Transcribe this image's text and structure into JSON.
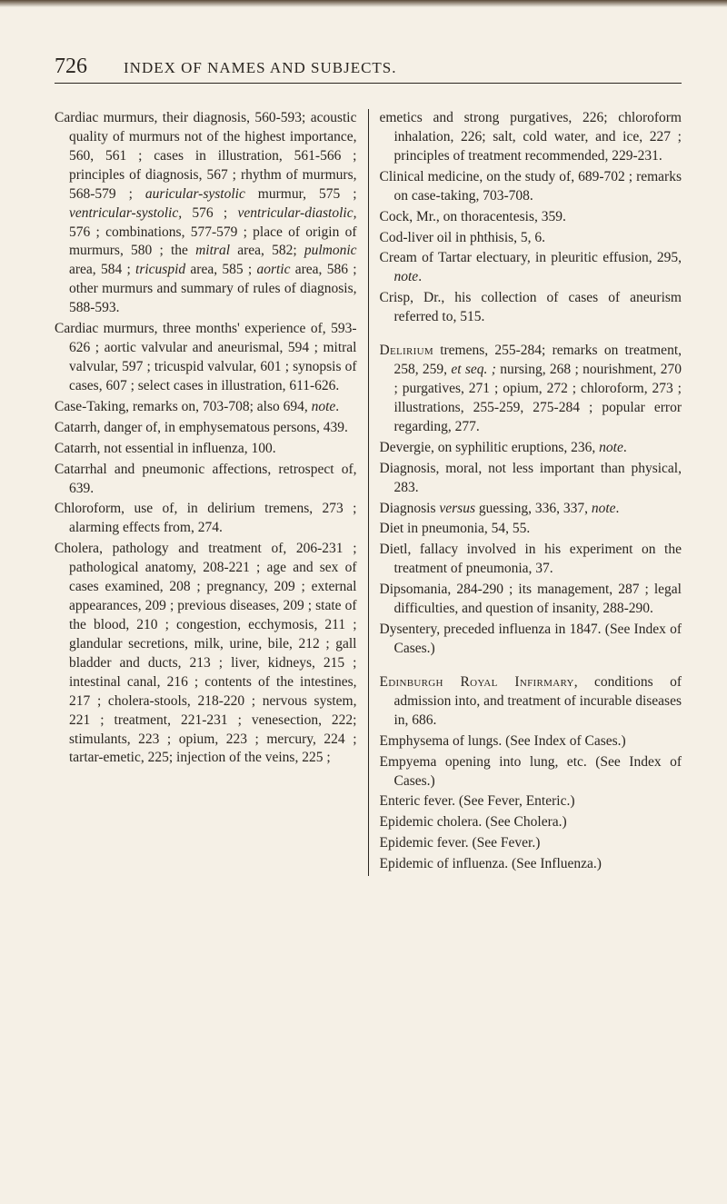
{
  "page": {
    "number": "726",
    "running_head": "INDEX OF NAMES AND SUBJECTS."
  },
  "left_entries": [
    {
      "html": "Cardiac murmurs, their diagnosis, 560-593; acoustic quality of murmurs not of the highest importance, 560, 561 ; cases in illustration, 561-566 ; principles of diagnosis, 567 ; rhythm of murmurs, 568-579 ; <span class='it'>auricular-systolic</span> murmur, 575 ; <span class='it'>ventricular-systolic,</span> 576 ; <span class='it'>ventricular-diastolic,</span> 576 ; combinations, 577-579 ; place of origin of murmurs, 580 ; the <span class='it'>mitral</span> area, 582; <span class='it'>pulmonic</span> area, 584 ; <span class='it'>tricuspid</span> area, 585 ; <span class='it'>aortic</span> area, 586 ; other murmurs and summary of rules of diagnosis, 588-593."
    },
    {
      "html": "Cardiac murmurs, three months' experience of, 593-626 ; aortic valvular and aneurismal, 594 ; mitral valvular, 597 ; tricuspid valvular, 601 ; synopsis of cases, 607 ; select cases in illustration, 611-626."
    },
    {
      "html": "Case-Taking, remarks on, 703-708; also 694, <span class='it'>note</span>."
    },
    {
      "html": "Catarrh, danger of, in emphysematous persons, 439."
    },
    {
      "html": "Catarrh, not essential in influenza, 100."
    },
    {
      "html": "Catarrhal and pneumonic affections, retrospect of, 639."
    },
    {
      "html": "Chloroform, use of, in delirium tremens, 273 ; alarming effects from, 274."
    },
    {
      "html": "Cholera, pathology and treatment of, 206-231 ; pathological anatomy, 208-221 ; age and sex of cases examined, 208 ; pregnancy, 209 ; external appearances, 209 ; previous diseases, 209 ; state of the blood, 210 ; congestion, ecchymosis, 211 ; glandular secretions, milk, urine, bile, 212 ; gall bladder and ducts, 213 ; liver, kidneys, 215 ; intestinal canal, 216 ; contents of the intestines, 217 ; cholera-stools, 218-220 ; nervous system, 221 ; treatment, 221-231 ; venesection, 222; stimulants, 223 ; opium, 223 ; mercury, 224 ; tartar-emetic, 225; injection of the veins, 225 ;"
    }
  ],
  "right_entries": [
    {
      "html": "emetics and strong purgatives, 226; chloroform inhalation, 226; salt, cold water, and ice, 227 ; principles of treatment recommended, 229-231."
    },
    {
      "html": "Clinical medicine, on the study of, 689-702 ; remarks on case-taking, 703-708."
    },
    {
      "html": "Cock, Mr., on thoracentesis, 359."
    },
    {
      "html": "Cod-liver oil in phthisis, 5, 6."
    },
    {
      "html": "Cream of Tartar electuary, in pleuritic effusion, 295, <span class='it'>note</span>."
    },
    {
      "html": "Crisp, Dr., his collection of cases of aneurism referred to, 515."
    },
    {
      "gap": true
    },
    {
      "html": "<span class='sc'>Delirium</span> tremens, 255-284; remarks on treatment, 258, 259, <span class='it'>et seq. ;</span> nursing, 268 ; nourishment, 270 ; purgatives, 271 ; opium, 272 ; chloroform, 273 ; illustrations, 255-259, 275-284 ; popular error regarding, 277."
    },
    {
      "html": "Devergie, on syphilitic eruptions, 236, <span class='it'>note</span>."
    },
    {
      "html": "Diagnosis, moral, not less important than physical, 283."
    },
    {
      "html": "Diagnosis <span class='it'>versus</span> guessing, 336, 337, <span class='it'>note</span>."
    },
    {
      "html": "Diet in pneumonia, 54, 55."
    },
    {
      "html": "Dietl, fallacy involved in his experiment on the treatment of pneumonia, 37."
    },
    {
      "html": "Dipsomania, 284-290 ; its management, 287 ; legal difficulties, and question of insanity, 288-290."
    },
    {
      "html": "Dysentery, preceded influenza in 1847. (See Index of Cases.)"
    },
    {
      "gap": true
    },
    {
      "html": "<span class='sc'>Edinburgh Royal Infirmary</span>, conditions of admission into, and treatment of incurable diseases in, 686."
    },
    {
      "html": "Emphysema of lungs. (See Index of Cases.)"
    },
    {
      "html": "Empyema opening into lung, etc. (See Index of Cases.)"
    },
    {
      "html": "Enteric fever. (See Fever, Enteric.)"
    },
    {
      "html": "Epidemic cholera. (See Cholera.)"
    },
    {
      "html": "Epidemic fever. (See Fever.)"
    },
    {
      "html": "Epidemic of influenza. (See Influenza.)"
    }
  ]
}
